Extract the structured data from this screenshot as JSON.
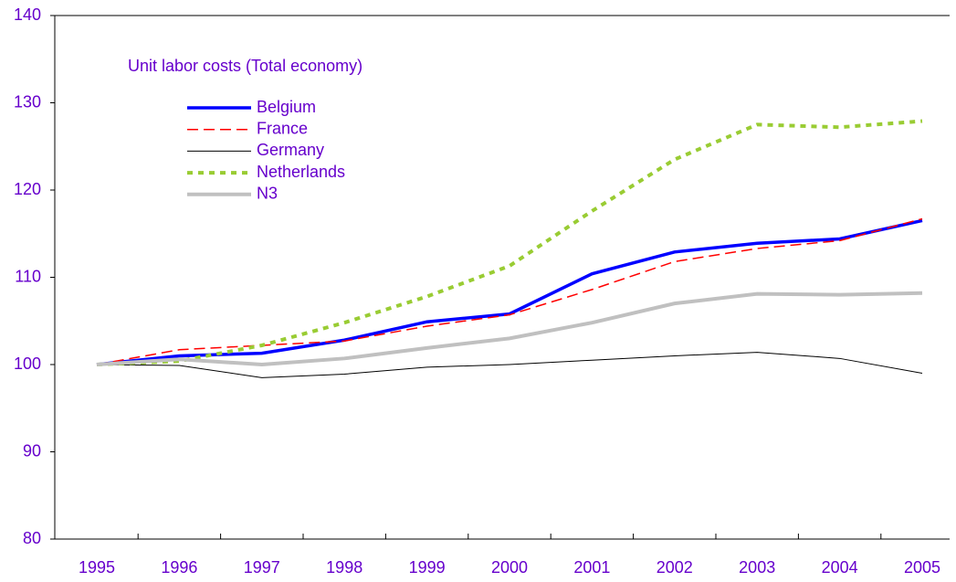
{
  "chart_data": {
    "type": "line",
    "title": "Unit labor costs (Total economy)",
    "categories": [
      "1995",
      "1996",
      "1997",
      "1998",
      "1999",
      "2000",
      "2001",
      "2002",
      "2003",
      "2004",
      "2005"
    ],
    "series": [
      {
        "name": "Belgium",
        "color": "#0000ff",
        "width": 3.5,
        "dash": "solid",
        "values": [
          100,
          101.0,
          101.3,
          102.8,
          104.9,
          105.8,
          110.4,
          112.9,
          113.9,
          114.4,
          116.5
        ]
      },
      {
        "name": "France",
        "color": "#ff0000",
        "width": 1.5,
        "dash": "dashed",
        "values": [
          100,
          101.7,
          102.2,
          102.7,
          104.4,
          105.7,
          108.6,
          111.8,
          113.3,
          114.2,
          116.7
        ]
      },
      {
        "name": "Germany",
        "color": "#000000",
        "width": 1,
        "dash": "solid",
        "values": [
          100,
          99.9,
          98.5,
          98.9,
          99.7,
          100.0,
          100.5,
          101.0,
          101.4,
          100.7,
          99.0
        ]
      },
      {
        "name": "Netherlands",
        "color": "#99cc33",
        "width": 4,
        "dash": "dotted",
        "values": [
          100,
          100.4,
          102.2,
          104.8,
          107.8,
          111.3,
          117.6,
          123.5,
          127.5,
          127.2,
          127.9
        ]
      },
      {
        "name": "N3",
        "color": "#c0c0c0",
        "width": 4,
        "dash": "solid",
        "values": [
          100,
          100.6,
          100.0,
          100.7,
          101.9,
          103.0,
          104.8,
          107.0,
          108.1,
          108.0,
          108.2
        ]
      }
    ],
    "ylim": [
      80,
      140
    ],
    "yticks": [
      80,
      90,
      100,
      110,
      120,
      130,
      140
    ],
    "grid": false,
    "legend": "upper left"
  }
}
